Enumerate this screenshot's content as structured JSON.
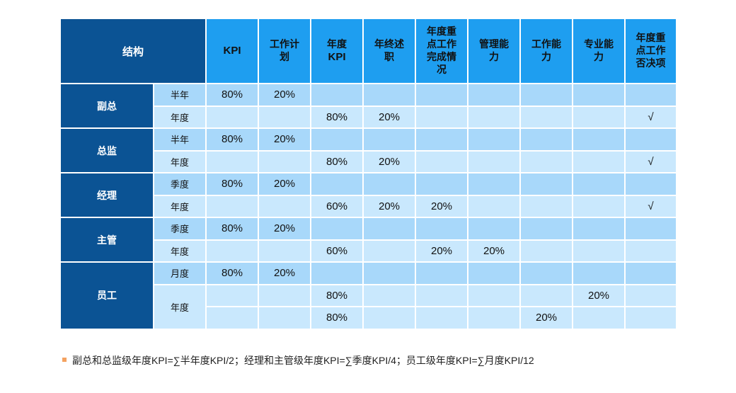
{
  "header": {
    "structure": "结构",
    "columns": [
      {
        "lines": [
          "KPI"
        ],
        "latin": true
      },
      {
        "lines": [
          "工作计",
          "划"
        ],
        "latin": false
      },
      {
        "lines": [
          "年度",
          "KPI"
        ],
        "latin": false
      },
      {
        "lines": [
          "年终述",
          "职"
        ],
        "latin": false
      },
      {
        "lines": [
          "年度重",
          "点工作",
          "完成情",
          "况"
        ],
        "latin": false
      },
      {
        "lines": [
          "管理能",
          "力"
        ],
        "latin": false
      },
      {
        "lines": [
          "工作能",
          "力"
        ],
        "latin": false
      },
      {
        "lines": [
          "专业能",
          "力"
        ],
        "latin": false
      },
      {
        "lines": [
          "年度重",
          "点工作",
          "否决项"
        ],
        "latin": false
      }
    ]
  },
  "groups": [
    {
      "name": "副总",
      "rows": [
        {
          "period": "半年",
          "cells": [
            "80%",
            "20%",
            "",
            "",
            "",
            "",
            "",
            "",
            ""
          ]
        },
        {
          "period": "年度",
          "cells": [
            "",
            "",
            "80%",
            "20%",
            "",
            "",
            "",
            "",
            "√"
          ]
        }
      ]
    },
    {
      "name": "总监",
      "rows": [
        {
          "period": "半年",
          "cells": [
            "80%",
            "20%",
            "",
            "",
            "",
            "",
            "",
            "",
            ""
          ]
        },
        {
          "period": "年度",
          "cells": [
            "",
            "",
            "80%",
            "20%",
            "",
            "",
            "",
            "",
            "√"
          ]
        }
      ]
    },
    {
      "name": "经理",
      "rows": [
        {
          "period": "季度",
          "cells": [
            "80%",
            "20%",
            "",
            "",
            "",
            "",
            "",
            "",
            ""
          ]
        },
        {
          "period": "年度",
          "cells": [
            "",
            "",
            "60%",
            "20%",
            "20%",
            "",
            "",
            "",
            "√"
          ]
        }
      ]
    },
    {
      "name": "主管",
      "rows": [
        {
          "period": "季度",
          "cells": [
            "80%",
            "20%",
            "",
            "",
            "",
            "",
            "",
            "",
            ""
          ]
        },
        {
          "period": "年度",
          "cells": [
            "",
            "",
            "60%",
            "",
            "20%",
            "20%",
            "",
            "",
            ""
          ]
        }
      ]
    },
    {
      "name": "员工",
      "rows": [
        {
          "period": "月度",
          "cells": [
            "80%",
            "20%",
            "",
            "",
            "",
            "",
            "",
            "",
            ""
          ]
        },
        {
          "period": "年度",
          "period_span": 2,
          "cells": [
            "",
            "",
            "80%",
            "",
            "",
            "",
            "",
            "20%",
            ""
          ]
        },
        {
          "period": null,
          "cells": [
            "",
            "",
            "80%",
            "",
            "",
            "",
            "20%",
            "",
            ""
          ]
        }
      ]
    }
  ],
  "note": {
    "text": "副总和总监级年度KPI=∑半年度KPI/2；经理和主管级年度KPI=∑季度KPI/4；员工级年度KPI=∑月度KPI/12"
  },
  "colors": {
    "dark_blue": "#0b5394",
    "header_blue": "#1e9ef0",
    "row_light_a": "#a8d8fa",
    "row_light_b": "#c9e8fd",
    "bullet": "#f4a261"
  }
}
